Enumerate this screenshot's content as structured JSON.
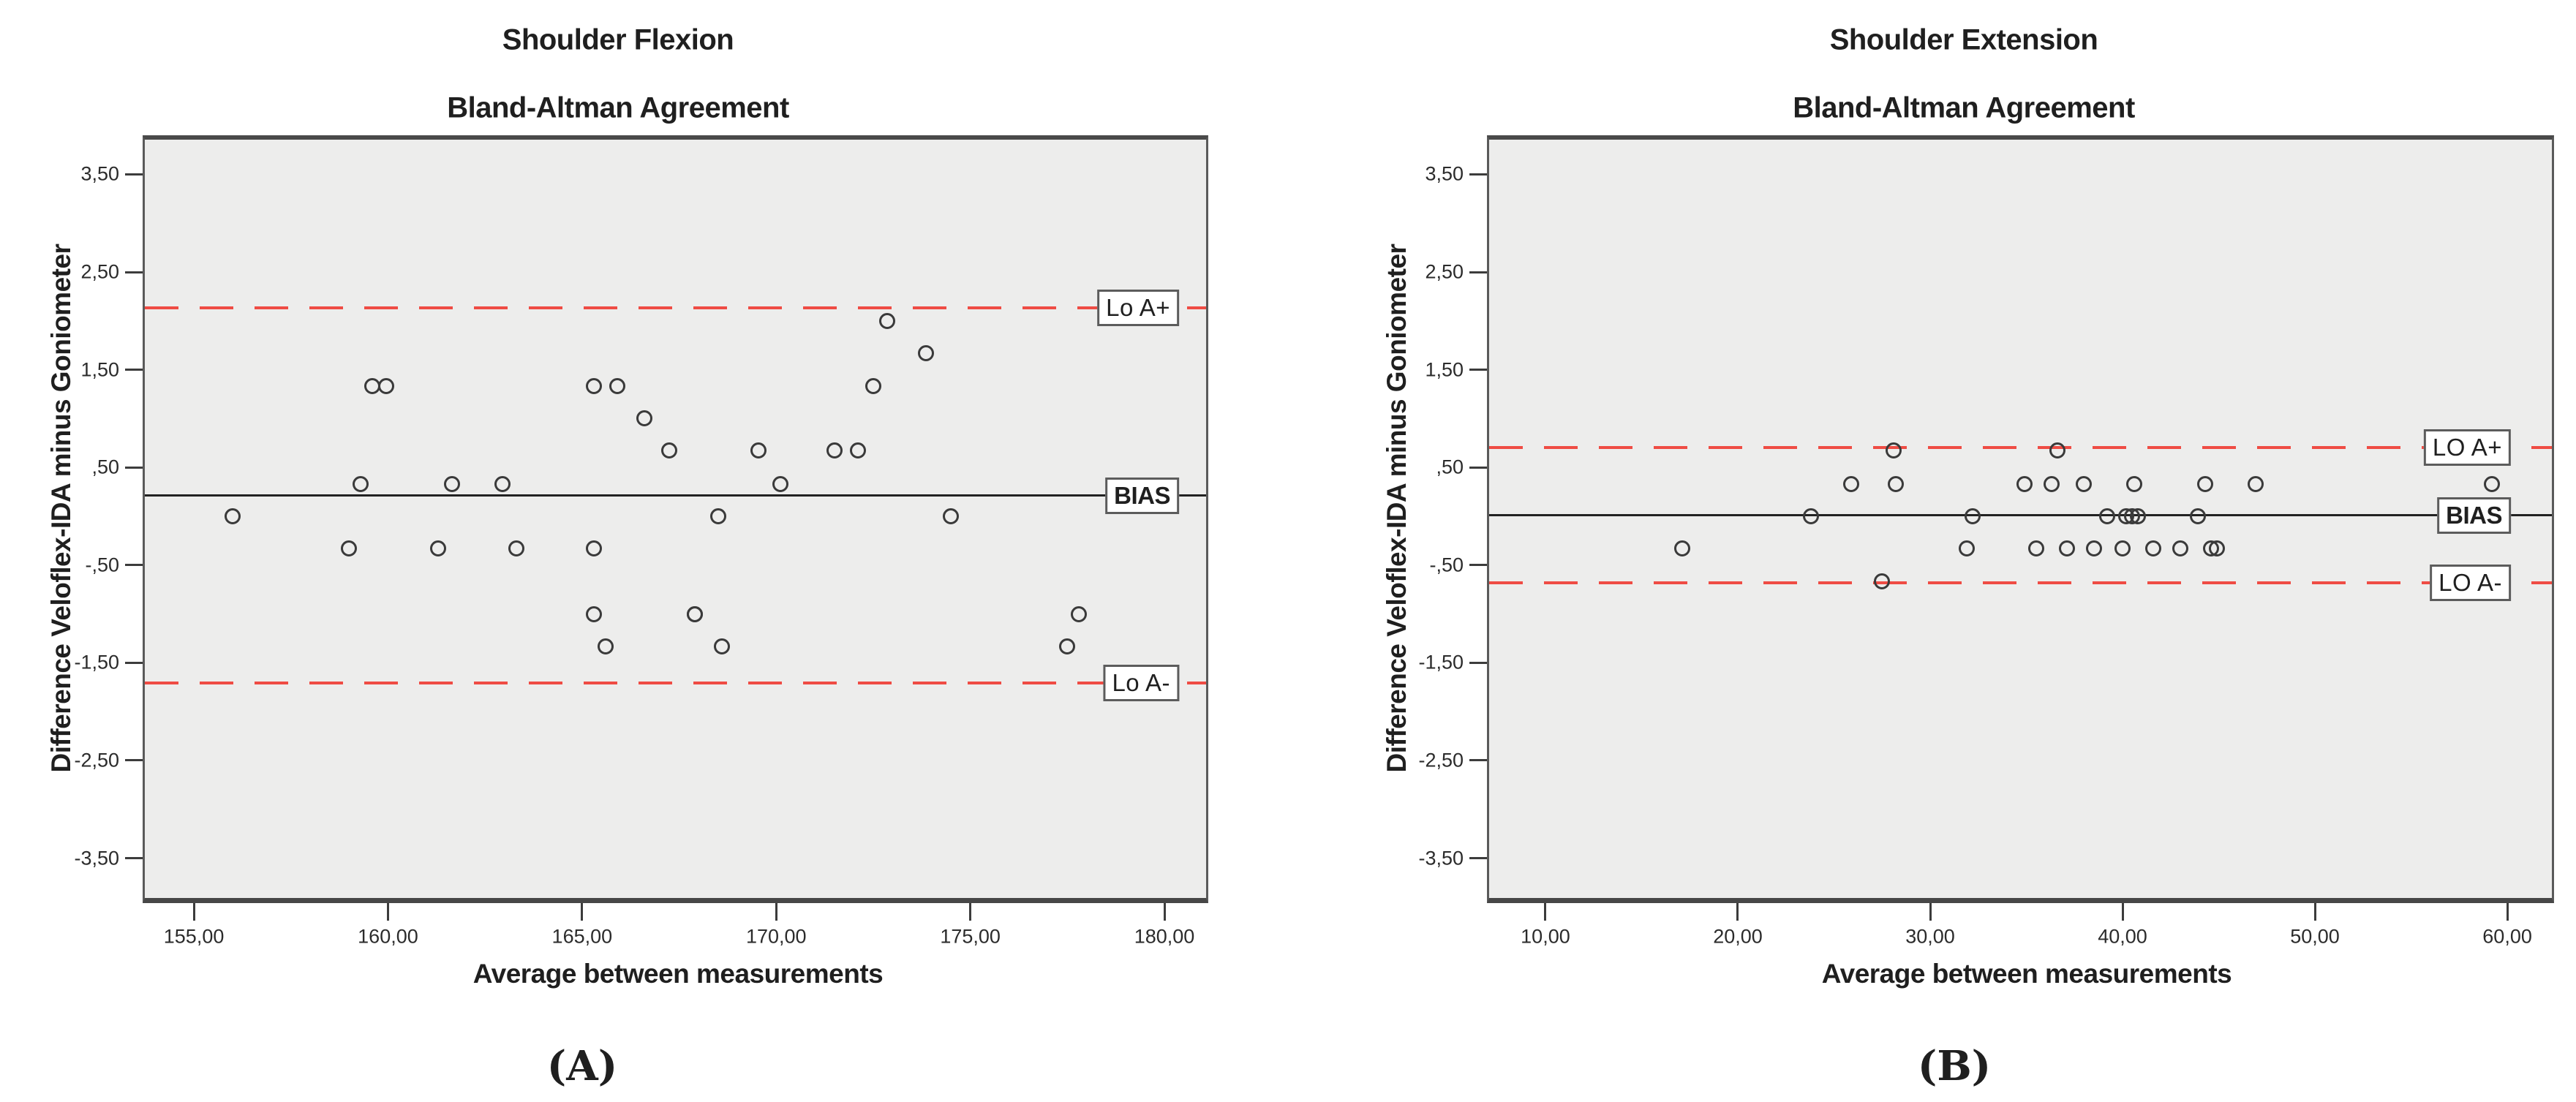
{
  "figure": {
    "background": "#ffffff",
    "plot_background": "#ededec",
    "accent_red": "#ef4c44",
    "line_black": "#222222",
    "marker_color": "#3a3a3a"
  },
  "chart_data": [
    {
      "type": "scatter",
      "title": "Shoulder Flexion",
      "subtitle": "Bland-Altman Agreement",
      "caption": "(A)",
      "xlabel": "Average between measurements",
      "ylabel": "Difference Veloflex-IDA minus Goniometer",
      "xlim": [
        153.68,
        181.13
      ],
      "ylim": [
        -3.96,
        3.9
      ],
      "grid": false,
      "legend": "none",
      "x_ticks": [
        {
          "v": 155,
          "label": "155,00"
        },
        {
          "v": 160,
          "label": "160,00"
        },
        {
          "v": 165,
          "label": "165,00"
        },
        {
          "v": 170,
          "label": "170,00"
        },
        {
          "v": 175,
          "label": "175,00"
        },
        {
          "v": 180,
          "label": "180,00"
        }
      ],
      "y_ticks": [
        {
          "v": 3.5,
          "label": "3,50"
        },
        {
          "v": 2.5,
          "label": "2,50"
        },
        {
          "v": 1.5,
          "label": "1,50"
        },
        {
          "v": 0.5,
          "label": ",50"
        },
        {
          "v": -0.5,
          "label": "-,50"
        },
        {
          "v": -1.5,
          "label": "-1,50"
        },
        {
          "v": -2.5,
          "label": "-2,50"
        },
        {
          "v": -3.5,
          "label": "-3,50"
        }
      ],
      "reference_lines": [
        {
          "id": "loa-plus",
          "value": 2.13,
          "label": "Lo A+",
          "style": "dashed",
          "color": "#ef4c44",
          "label_bold": false
        },
        {
          "id": "bias",
          "value": 0.21,
          "label": "BIAS",
          "style": "solid",
          "color": "#222222",
          "label_bold": true
        },
        {
          "id": "loa-minus",
          "value": -1.71,
          "label": "Lo A-",
          "style": "dashed",
          "color": "#ef4c44",
          "label_bold": false
        }
      ],
      "points": [
        [
          156.0,
          0.0
        ],
        [
          159.0,
          -0.33
        ],
        [
          159.3,
          0.33
        ],
        [
          159.6,
          1.33
        ],
        [
          159.95,
          1.33
        ],
        [
          161.3,
          -0.33
        ],
        [
          161.65,
          0.33
        ],
        [
          162.95,
          0.33
        ],
        [
          163.3,
          -0.33
        ],
        [
          165.3,
          1.33
        ],
        [
          165.3,
          -0.33
        ],
        [
          165.3,
          -1.0
        ],
        [
          165.6,
          -1.33
        ],
        [
          165.9,
          1.33
        ],
        [
          166.6,
          1.0
        ],
        [
          167.25,
          0.67
        ],
        [
          167.9,
          -1.0
        ],
        [
          167.9,
          -1.0
        ],
        [
          168.5,
          0.0
        ],
        [
          168.6,
          -1.33
        ],
        [
          169.55,
          0.67
        ],
        [
          170.1,
          0.33
        ],
        [
          171.5,
          0.67
        ],
        [
          172.1,
          0.67
        ],
        [
          172.5,
          1.33
        ],
        [
          172.85,
          2.0
        ],
        [
          173.85,
          1.67
        ],
        [
          174.5,
          0.0
        ],
        [
          177.5,
          -1.33
        ],
        [
          177.8,
          -1.0
        ]
      ]
    },
    {
      "type": "scatter",
      "title": "Shoulder Extension",
      "subtitle": "Bland-Altman Agreement",
      "caption": "(B)",
      "xlabel": "Average between measurements",
      "ylabel": "Difference Veloflex-IDA minus Goniometer",
      "xlim": [
        6.96,
        62.43
      ],
      "ylim": [
        -3.96,
        3.9
      ],
      "grid": false,
      "legend": "none",
      "x_ticks": [
        {
          "v": 10,
          "label": "10,00"
        },
        {
          "v": 20,
          "label": "20,00"
        },
        {
          "v": 30,
          "label": "30,00"
        },
        {
          "v": 40,
          "label": "40,00"
        },
        {
          "v": 50,
          "label": "50,00"
        },
        {
          "v": 60,
          "label": "60,00"
        }
      ],
      "y_ticks": [
        {
          "v": 3.5,
          "label": "3,50"
        },
        {
          "v": 2.5,
          "label": "2,50"
        },
        {
          "v": 1.5,
          "label": "1,50"
        },
        {
          "v": 0.5,
          "label": ",50"
        },
        {
          "v": -0.5,
          "label": "-,50"
        },
        {
          "v": -1.5,
          "label": "-1,50"
        },
        {
          "v": -2.5,
          "label": "-2,50"
        },
        {
          "v": -3.5,
          "label": "-3,50"
        }
      ],
      "reference_lines": [
        {
          "id": "loa-plus",
          "value": 0.7,
          "label": "LO A+",
          "style": "dashed",
          "color": "#ef4c44",
          "label_bold": false
        },
        {
          "id": "bias",
          "value": 0.01,
          "label": "BIAS",
          "style": "solid",
          "color": "#222222",
          "label_bold": true
        },
        {
          "id": "loa-minus",
          "value": -0.68,
          "label": "LO A-",
          "style": "dashed",
          "color": "#ef4c44",
          "label_bold": false
        }
      ],
      "points": [
        [
          17.1,
          -0.33
        ],
        [
          23.8,
          0.0
        ],
        [
          25.9,
          0.33
        ],
        [
          27.5,
          -0.67
        ],
        [
          28.1,
          0.67
        ],
        [
          28.2,
          0.33
        ],
        [
          31.9,
          -0.33
        ],
        [
          32.2,
          0.0
        ],
        [
          34.9,
          0.33
        ],
        [
          35.5,
          -0.33
        ],
        [
          36.3,
          0.33
        ],
        [
          36.6,
          0.67
        ],
        [
          37.1,
          -0.33
        ],
        [
          38.0,
          0.33
        ],
        [
          38.5,
          -0.33
        ],
        [
          39.2,
          0.0
        ],
        [
          40.0,
          -0.33
        ],
        [
          40.2,
          0.0
        ],
        [
          40.5,
          0.0
        ],
        [
          40.6,
          0.33
        ],
        [
          40.8,
          0.0
        ],
        [
          41.6,
          -0.33
        ],
        [
          43.0,
          -0.33
        ],
        [
          43.9,
          0.0
        ],
        [
          44.3,
          0.33
        ],
        [
          44.6,
          -0.33
        ],
        [
          44.9,
          -0.33
        ],
        [
          46.9,
          0.33
        ],
        [
          59.2,
          0.33
        ]
      ]
    }
  ]
}
